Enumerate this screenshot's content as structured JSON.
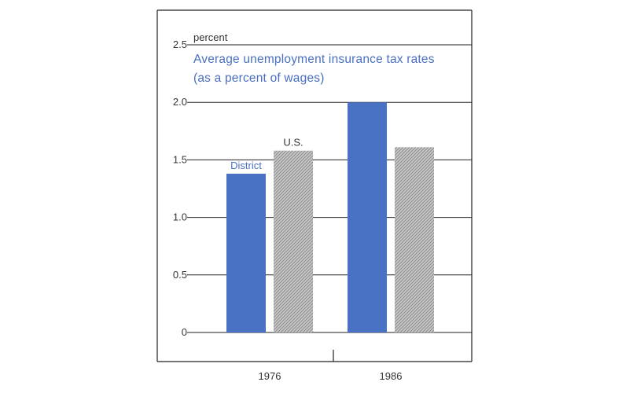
{
  "colors": {
    "district": "#4a72c4",
    "us_fill": "#c6c6c6",
    "us_hatch": "#8e8e8e",
    "axis": "#222222",
    "title": "#4a6fc1",
    "text": "#333333"
  },
  "chart_data": {
    "type": "bar",
    "title": "Average unemployment insurance tax rates",
    "subtitle": "(as a percent of wages)",
    "ylabel": "percent",
    "xlabel": "",
    "categories": [
      "1976",
      "1986"
    ],
    "series": [
      {
        "name": "District",
        "values": [
          1.38,
          2.0
        ]
      },
      {
        "name": "U.S.",
        "values": [
          1.58,
          1.61
        ]
      }
    ],
    "ylim": [
      0,
      2.5
    ],
    "yticks": [
      "0",
      "0.5",
      "1.0",
      "1.5",
      "2.0",
      "2.5"
    ],
    "grid": true,
    "legend": "direct labels above first-category bars"
  }
}
